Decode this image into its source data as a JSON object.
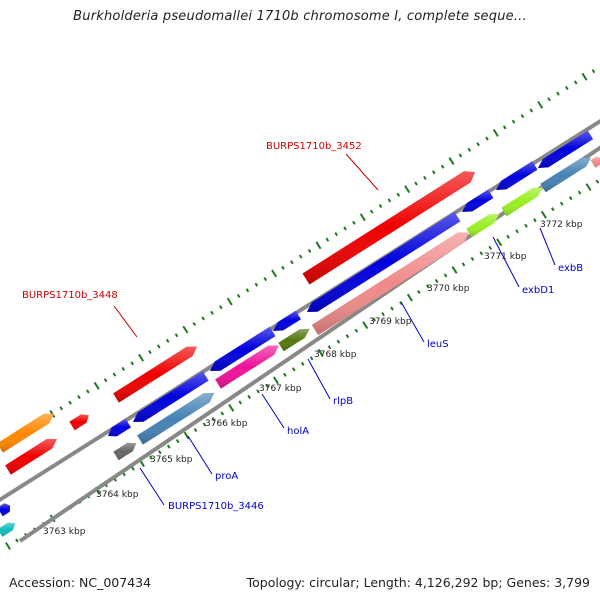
{
  "title": "Burkholderia pseudomallei 1710b chromosome I, complete seque...",
  "footer": {
    "accession": "Accession: NC_007434",
    "summary": "Topology: circular; Length: 4,126,292 bp; Genes: 3,799"
  },
  "scale_labels": [
    "3763 kbp",
    "3764 kbp",
    "3765 kbp",
    "3766 kbp",
    "3767 kbp",
    "3768 kbp",
    "3769 kbp",
    "3770 kbp",
    "3771 kbp",
    "3772 kbp"
  ],
  "gene_labels": [
    {
      "text": "BURPS1710b_3452",
      "color": "#cc0000"
    },
    {
      "text": "BURPS1710b_3448",
      "color": "#cc0000"
    },
    {
      "text": "BURPS1710b_3446",
      "color": "#0000cc"
    },
    {
      "text": "proA",
      "color": "#0000cc"
    },
    {
      "text": "holA",
      "color": "#0000cc"
    },
    {
      "text": "rlpB",
      "color": "#0000cc"
    },
    {
      "text": "leuS",
      "color": "#0000cc"
    },
    {
      "text": "exbD1",
      "color": "#0000cc"
    },
    {
      "text": "exbB",
      "color": "#0000cc"
    }
  ],
  "colors": {
    "red": "#ee0000",
    "blue": "#0000dd",
    "orange": "#ff8800",
    "pink_salmon": "#f08a8a",
    "steel_blue": "#4682b4",
    "magenta": "#ee1199",
    "olive": "#557711",
    "lime": "#99ee22",
    "gray": "#666666",
    "cyan": "#11bbbb",
    "backbone": "#888888",
    "tick": "#227722"
  }
}
